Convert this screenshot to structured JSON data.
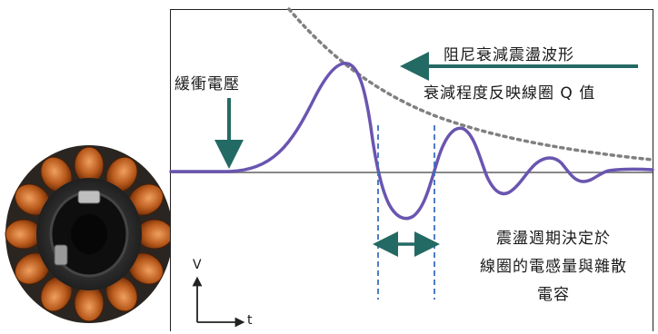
{
  "labels": {
    "buffer_voltage": "緩衝電壓",
    "damped_waveform": "阻尼衰減震盪波形",
    "decay_q": "衰減程度反映線圈 Q 值",
    "period_line1": "震盪週期決定於",
    "period_line2": "線圈的電感量與雜散",
    "period_line3": "電容"
  },
  "axes": {
    "v": "V",
    "t": "t"
  },
  "colors": {
    "waveform": "#6a55b0",
    "arrow": "#246a64",
    "envelope": "#808080",
    "marker": "#3a70c0",
    "baseline": "#888888"
  },
  "icons": {
    "stator_image": "motor-stator-coil-icon"
  }
}
